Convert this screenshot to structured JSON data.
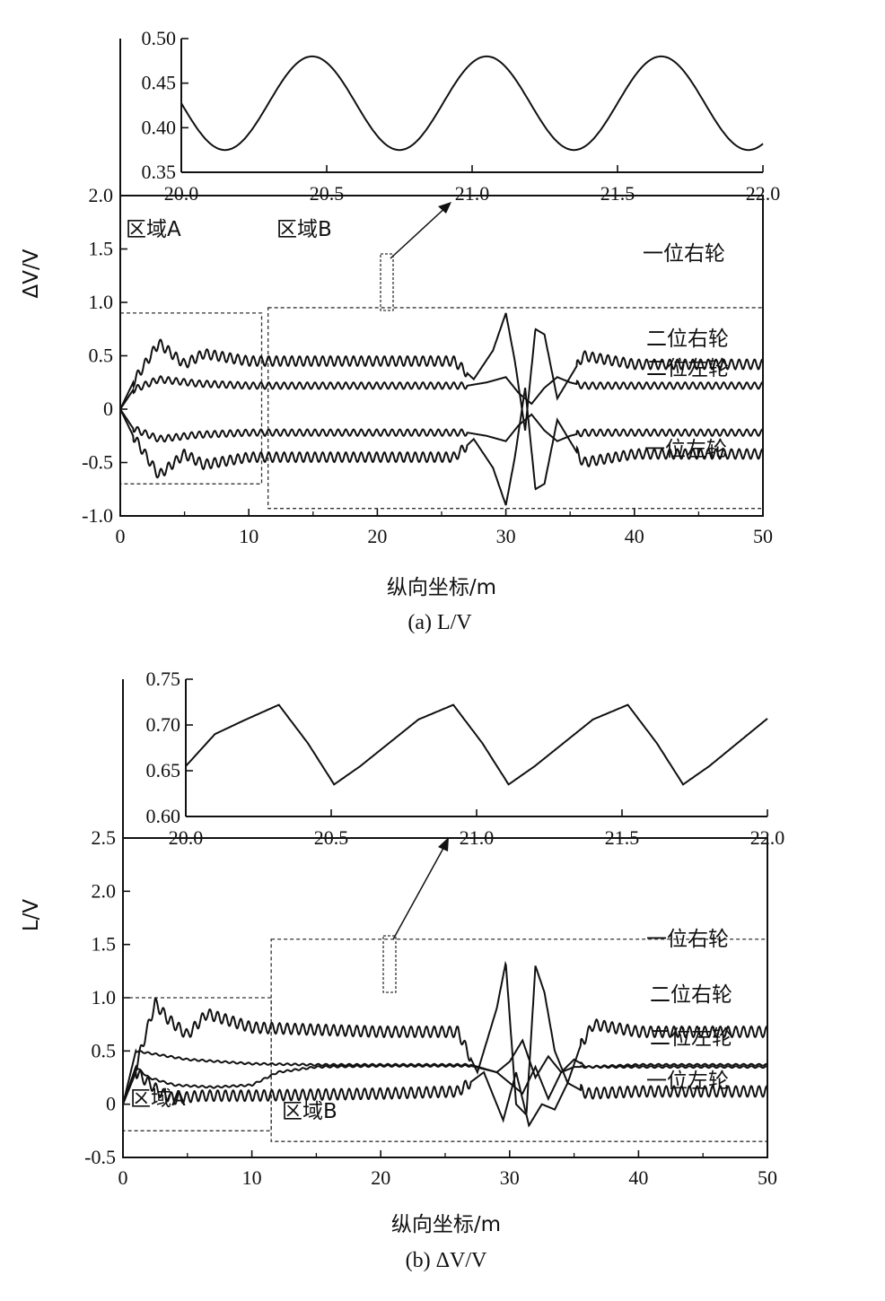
{
  "charts": [
    {
      "caption": "(a) L/V",
      "ylabel": "ΔV/V",
      "xlabel": "纵向坐标/m",
      "outer_y_ticks": [
        "2.0",
        "1.5",
        "1.0",
        "0.5",
        "0",
        "-0.5",
        "-1.0"
      ],
      "x_ticks": [
        "0",
        "10",
        "20",
        "30",
        "40",
        "50"
      ],
      "inset_y_ticks": [
        "0.50",
        "0.45",
        "0.40",
        "0.35"
      ],
      "inset_x_ticks": [
        "20.0",
        "20.5",
        "21.0",
        "21.5",
        "22.0"
      ],
      "region_a": "区域A",
      "region_b": "区域B",
      "legend": [
        "一位右轮",
        "二位右轮",
        "二位左轮",
        "一位左轮"
      ]
    },
    {
      "caption": "(b) ΔV/V",
      "ylabel": "L/V",
      "xlabel": "纵向坐标/m",
      "outer_y_ticks": [
        "2.5",
        "2.0",
        "1.5",
        "1.0",
        "0.5",
        "0",
        "-0.5"
      ],
      "x_ticks": [
        "0",
        "10",
        "20",
        "30",
        "40",
        "50"
      ],
      "inset_y_ticks": [
        "0.75",
        "0.70",
        "0.65",
        "0.60"
      ],
      "inset_x_ticks": [
        "20.0",
        "20.5",
        "21.0",
        "21.5",
        "22.0"
      ],
      "region_a": "区域A",
      "region_b": "区域B",
      "legend": [
        "一位右轮",
        "二位右轮",
        "二位左轮",
        "一位左轮"
      ]
    }
  ],
  "chart_data": [
    {
      "type": "line",
      "title": "(a) L/V",
      "xlabel": "纵向坐标/m",
      "ylabel": "ΔV/V",
      "xlim": [
        0,
        50
      ],
      "ylim": [
        -1.0,
        2.0
      ],
      "series": [
        {
          "name": "一位右轮",
          "x": [
            0,
            1,
            3,
            5,
            6.5,
            10,
            20,
            26,
            27.5,
            29,
            30,
            30.7,
            31.5,
            32.3,
            33,
            34,
            35,
            36,
            40,
            50
          ],
          "y": [
            0,
            0.25,
            0.62,
            0.42,
            0.52,
            0.45,
            0.45,
            0.45,
            0.28,
            0.55,
            0.9,
            0.45,
            -0.2,
            0.75,
            0.7,
            0.1,
            0.3,
            0.5,
            0.42,
            0.42
          ]
        },
        {
          "name": "二位右轮",
          "x": [
            0,
            1,
            3,
            6,
            10,
            20,
            27,
            28.5,
            30,
            31,
            32,
            33,
            34,
            35,
            36,
            40,
            50
          ],
          "y": [
            0,
            0.18,
            0.28,
            0.24,
            0.22,
            0.22,
            0.22,
            0.25,
            0.3,
            0.15,
            0.05,
            0.2,
            0.3,
            0.25,
            0.22,
            0.22,
            0.22
          ]
        },
        {
          "name": "二位左轮",
          "x": [
            0,
            1,
            3,
            6,
            10,
            20,
            27,
            28.5,
            30,
            31,
            32,
            33,
            34,
            35,
            36,
            40,
            50
          ],
          "y": [
            0,
            -0.18,
            -0.28,
            -0.24,
            -0.22,
            -0.22,
            -0.22,
            -0.25,
            -0.3,
            -0.15,
            -0.05,
            -0.2,
            -0.3,
            -0.25,
            -0.22,
            -0.22,
            -0.22
          ]
        },
        {
          "name": "一位左轮",
          "x": [
            0,
            1,
            3,
            5,
            6.5,
            10,
            20,
            26,
            27.5,
            29,
            30,
            30.7,
            31.5,
            32.3,
            33,
            34,
            35,
            36,
            40,
            50
          ],
          "y": [
            0,
            -0.25,
            -0.62,
            -0.42,
            -0.52,
            -0.45,
            -0.45,
            -0.45,
            -0.28,
            -0.55,
            -0.9,
            -0.45,
            0.2,
            -0.75,
            -0.7,
            -0.1,
            -0.3,
            -0.5,
            -0.42,
            -0.42
          ]
        }
      ],
      "inset": {
        "xlim": [
          20.0,
          22.0
        ],
        "ylim": [
          0.35,
          0.5
        ],
        "series": [
          {
            "x": [
              20.0,
              20.2,
              20.45,
              20.75,
              21.05,
              21.35,
              21.65,
              21.95,
              22.0
            ],
            "y": [
              0.42,
              0.375,
              0.48,
              0.375,
              0.48,
              0.375,
              0.48,
              0.375,
              0.38
            ]
          }
        ]
      },
      "regions": [
        {
          "label": "区域A",
          "x": [
            0,
            11
          ],
          "y": [
            -0.7,
            0.9
          ]
        },
        {
          "label": "区域B",
          "x": [
            11.5,
            50
          ],
          "y": [
            -0.93,
            0.95
          ]
        }
      ]
    },
    {
      "type": "line",
      "title": "(b) ΔV/V",
      "xlabel": "纵向坐标/m",
      "ylabel": "L/V",
      "xlim": [
        0,
        50
      ],
      "ylim": [
        -0.5,
        2.5
      ],
      "series": [
        {
          "name": "一位右轮",
          "x": [
            0,
            1,
            2.5,
            3.5,
            5,
            6.5,
            10,
            20,
            26,
            27.5,
            29,
            29.7,
            30.5,
            31.3,
            32,
            32.7,
            33.5,
            34.5,
            35.5,
            36.5,
            40,
            50
          ],
          "y": [
            0,
            0.35,
            0.95,
            0.8,
            0.65,
            0.85,
            0.72,
            0.68,
            0.68,
            0.3,
            0.9,
            1.33,
            0.0,
            -0.1,
            1.3,
            1.05,
            0.5,
            0.2,
            0.55,
            0.75,
            0.68,
            0.68
          ]
        },
        {
          "name": "二位右轮",
          "x": [
            0,
            1,
            2,
            5,
            10,
            15,
            20,
            27,
            29,
            30,
            31,
            32,
            33,
            34,
            35,
            36,
            40,
            50
          ],
          "y": [
            0,
            0.5,
            0.48,
            0.42,
            0.38,
            0.37,
            0.37,
            0.37,
            0.3,
            0.4,
            0.6,
            0.25,
            0.45,
            0.3,
            0.42,
            0.35,
            0.37,
            0.37
          ]
        },
        {
          "name": "二位左轮",
          "x": [
            0,
            1,
            2,
            4,
            7,
            10,
            12,
            15,
            20,
            27,
            29,
            30,
            31,
            32,
            33,
            34,
            35,
            40,
            50
          ],
          "y": [
            0,
            0.35,
            0.25,
            0.18,
            0.16,
            0.18,
            0.3,
            0.35,
            0.36,
            0.36,
            0.3,
            0.2,
            0.1,
            0.35,
            0.05,
            0.3,
            0.35,
            0.35,
            0.35
          ]
        },
        {
          "name": "一位左轮",
          "x": [
            0,
            1,
            3,
            4,
            6,
            10,
            20,
            26,
            28,
            29.5,
            30.5,
            31.5,
            32.5,
            33.5,
            34.5,
            36,
            40,
            50
          ],
          "y": [
            0,
            0.3,
            0.1,
            0.05,
            0.08,
            0.08,
            0.1,
            0.12,
            0.3,
            -0.15,
            0.3,
            -0.2,
            0.0,
            -0.05,
            0.2,
            0.1,
            0.12,
            0.12
          ]
        }
      ],
      "inset": {
        "xlim": [
          20.0,
          22.0
        ],
        "ylim": [
          0.6,
          0.75
        ],
        "series": [
          {
            "x": [
              20.0,
              20.1,
              20.2,
              20.32,
              20.42,
              20.51,
              20.6,
              20.8,
              20.92,
              21.02,
              21.11,
              21.2,
              21.4,
              21.52,
              21.62,
              21.71,
              21.8,
              22.0
            ],
            "y": [
              0.655,
              0.69,
              0.705,
              0.722,
              0.68,
              0.635,
              0.655,
              0.706,
              0.722,
              0.68,
              0.635,
              0.655,
              0.706,
              0.722,
              0.68,
              0.635,
              0.655,
              0.707
            ]
          }
        ]
      },
      "regions": [
        {
          "label": "区域A",
          "x": [
            0,
            11.5
          ],
          "y": [
            -0.25,
            1.0
          ]
        },
        {
          "label": "区域B",
          "x": [
            11.5,
            50
          ],
          "y": [
            -0.35,
            1.55
          ]
        }
      ]
    }
  ]
}
